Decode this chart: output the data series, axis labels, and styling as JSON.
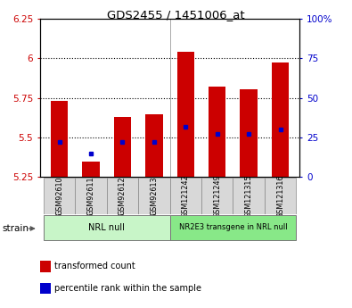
{
  "title": "GDS2455 / 1451006_at",
  "samples": [
    "GSM92610",
    "GSM92611",
    "GSM92612",
    "GSM92613",
    "GSM121242",
    "GSM121249",
    "GSM121315",
    "GSM121316"
  ],
  "transformed_counts": [
    5.73,
    5.35,
    5.63,
    5.645,
    6.04,
    5.82,
    5.805,
    5.97
  ],
  "percentile_ranks": [
    22,
    15,
    22,
    22,
    32,
    27,
    27,
    30
  ],
  "groups": [
    {
      "label": "NRL null",
      "start": 0,
      "end": 4,
      "color": "#c8f5c8"
    },
    {
      "label": "NR2E3 transgene in NRL null",
      "start": 4,
      "end": 8,
      "color": "#88e888"
    }
  ],
  "ylim_left": [
    5.25,
    6.25
  ],
  "ylim_right": [
    0,
    100
  ],
  "yticks_left": [
    5.25,
    5.5,
    5.75,
    6.0,
    6.25
  ],
  "ytick_labels_left": [
    "5.25",
    "5.5",
    "5.75",
    "6",
    "6.25"
  ],
  "yticks_right": [
    0,
    25,
    50,
    75,
    100
  ],
  "ytick_labels_right": [
    "0",
    "25",
    "50",
    "75",
    "100%"
  ],
  "bar_color": "#cc0000",
  "dot_color": "#0000cc",
  "bar_width": 0.55,
  "bg_color": "#ffffff",
  "tick_label_color_left": "#cc0000",
  "tick_label_color_right": "#0000cc",
  "strain_label": "strain",
  "legend_items": [
    {
      "label": "transformed count",
      "color": "#cc0000"
    },
    {
      "label": "percentile rank within the sample",
      "color": "#0000cc"
    }
  ],
  "gridlines_at": [
    5.5,
    5.75,
    6.0
  ],
  "group_separator": 3.5
}
